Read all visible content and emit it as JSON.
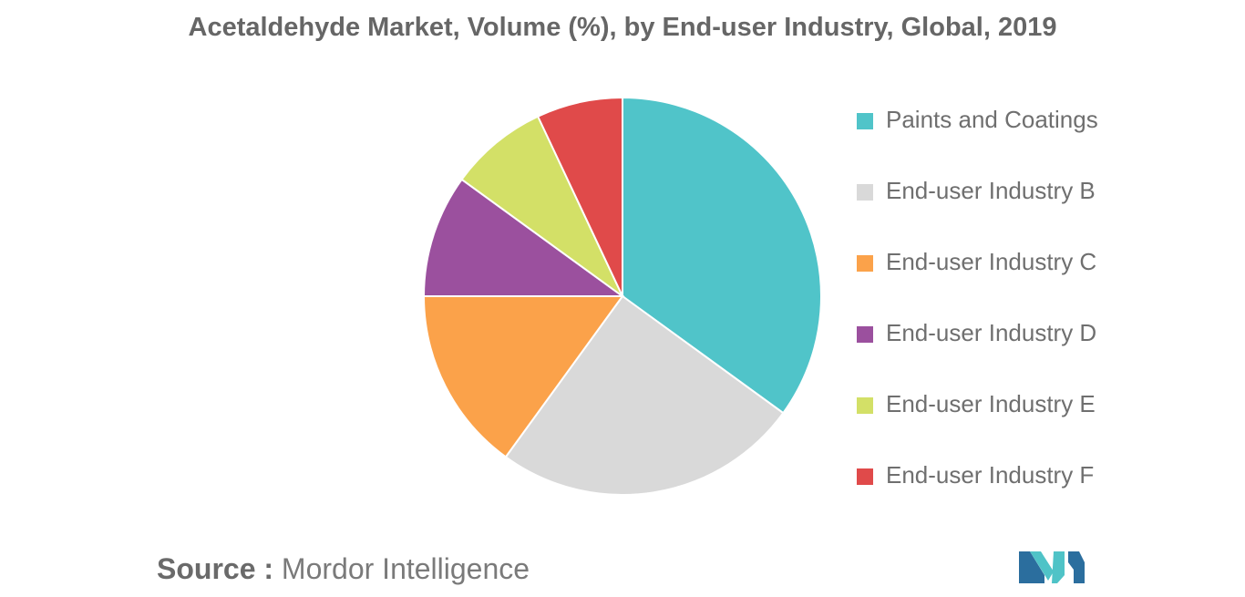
{
  "chart_data": {
    "type": "pie",
    "title": "Acetaldehyde Market, Volume (%), by End-user Industry, Global, 2019",
    "slices": [
      {
        "label": "Paints and Coatings",
        "value": 35,
        "color": "#50c4c9"
      },
      {
        "label": "End-user Industry B",
        "value": 25,
        "color": "#d9d9d9"
      },
      {
        "label": "End-user Industry C",
        "value": 15,
        "color": "#fba24a"
      },
      {
        "label": "End-user Industry D",
        "value": 10,
        "color": "#9b509e"
      },
      {
        "label": "End-user Industry E",
        "value": 8,
        "color": "#d3e067"
      },
      {
        "label": "End-user Industry F",
        "value": 7,
        "color": "#e04a4a"
      }
    ],
    "legend_position": "right",
    "start_angle": "12 o'clock",
    "direction": "clockwise"
  },
  "source": {
    "prefix": "Source :",
    "text": "Mordor Intelligence"
  },
  "logo": {
    "icon": "mordor-intelligence-logo",
    "colors": [
      "#2b6e9e",
      "#4fc3c7"
    ]
  }
}
